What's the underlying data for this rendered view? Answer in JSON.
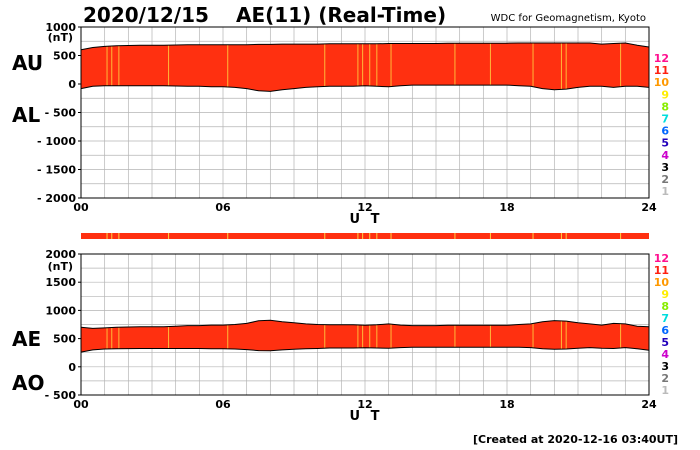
{
  "header": {
    "date": "2020/12/15",
    "title": "AE(11) (Real-Time)",
    "source": "WDC for Geomagnetism, Kyoto"
  },
  "footer": {
    "created": "[Created at 2020-12-16 03:40UT]"
  },
  "colors": {
    "fill": "#ff3010",
    "grid": "#b4b4b4",
    "flag_bar": "#ff3010",
    "outline": "#000000",
    "highlight_line": "#ffd040"
  },
  "chart_data": [
    {
      "type": "area",
      "panel": "AU/AL",
      "xlabel": "U T",
      "ylabel": "(nT)",
      "xlim": [
        0,
        24
      ],
      "ylim": [
        -2000,
        1000
      ],
      "x_ticks": [
        "00",
        "06",
        "12",
        "18",
        "24"
      ],
      "y_ticks": [
        "1000",
        "500",
        "0",
        "- 500",
        "- 1000",
        "- 1500",
        "- 2000"
      ],
      "side_labels": [
        "AU",
        "AL"
      ],
      "x": [
        0,
        0.5,
        1,
        1.5,
        2,
        2.5,
        3,
        3.5,
        4,
        4.5,
        5,
        5.5,
        6,
        6.5,
        7,
        7.5,
        8,
        8.5,
        9,
        9.5,
        10,
        10.5,
        11,
        11.5,
        12,
        12.5,
        13,
        13.5,
        14,
        14.5,
        15,
        15.5,
        16,
        16.5,
        17,
        17.5,
        18,
        18.5,
        19,
        19.5,
        20,
        20.5,
        21,
        21.5,
        22,
        22.5,
        23,
        23.5,
        24
      ],
      "series": [
        {
          "name": "AU",
          "values": [
            600,
            640,
            660,
            670,
            675,
            680,
            680,
            680,
            685,
            690,
            690,
            690,
            690,
            690,
            690,
            695,
            695,
            700,
            700,
            700,
            700,
            705,
            705,
            705,
            705,
            705,
            710,
            710,
            710,
            710,
            710,
            715,
            715,
            715,
            715,
            715,
            715,
            720,
            720,
            720,
            720,
            720,
            720,
            720,
            700,
            710,
            720,
            680,
            650
          ]
        },
        {
          "name": "AL",
          "values": [
            -80,
            -40,
            -30,
            -30,
            -30,
            -30,
            -30,
            -30,
            -35,
            -40,
            -40,
            -50,
            -50,
            -60,
            -80,
            -120,
            -130,
            -100,
            -80,
            -60,
            -50,
            -40,
            -40,
            -40,
            -30,
            -40,
            -50,
            -30,
            -20,
            -20,
            -20,
            -20,
            -20,
            -20,
            -20,
            -20,
            -20,
            -30,
            -40,
            -80,
            -100,
            -90,
            -60,
            -40,
            -40,
            -60,
            -40,
            -40,
            -60
          ]
        }
      ]
    },
    {
      "type": "area",
      "panel": "AE/AO",
      "xlabel": "U T",
      "ylabel": "(nT)",
      "xlim": [
        0,
        24
      ],
      "ylim": [
        -500,
        2000
      ],
      "x_ticks": [
        "00",
        "06",
        "12",
        "18",
        "24"
      ],
      "y_ticks": [
        "2000",
        "1500",
        "1000",
        "500",
        "0",
        "- 500"
      ],
      "side_labels": [
        "AE",
        "AO"
      ],
      "x": [
        0,
        0.5,
        1,
        1.5,
        2,
        2.5,
        3,
        3.5,
        4,
        4.5,
        5,
        5.5,
        6,
        6.5,
        7,
        7.5,
        8,
        8.5,
        9,
        9.5,
        10,
        10.5,
        11,
        11.5,
        12,
        12.5,
        13,
        13.5,
        14,
        14.5,
        15,
        15.5,
        16,
        16.5,
        17,
        17.5,
        18,
        18.5,
        19,
        19.5,
        20,
        20.5,
        21,
        21.5,
        22,
        22.5,
        23,
        23.5,
        24
      ],
      "series": [
        {
          "name": "AE",
          "values": [
            700,
            680,
            690,
            700,
            705,
            710,
            710,
            710,
            720,
            730,
            730,
            740,
            740,
            750,
            770,
            815,
            825,
            800,
            780,
            760,
            750,
            745,
            745,
            745,
            735,
            745,
            760,
            740,
            730,
            730,
            730,
            735,
            735,
            735,
            735,
            735,
            735,
            750,
            760,
            800,
            820,
            810,
            780,
            760,
            740,
            770,
            760,
            720,
            710
          ]
        },
        {
          "name": "AO",
          "values": [
            260,
            300,
            315,
            320,
            322,
            325,
            325,
            325,
            325,
            325,
            325,
            320,
            320,
            315,
            305,
            288,
            283,
            300,
            310,
            320,
            325,
            333,
            333,
            333,
            338,
            333,
            330,
            340,
            345,
            345,
            345,
            348,
            348,
            348,
            348,
            348,
            348,
            345,
            340,
            320,
            310,
            315,
            330,
            340,
            330,
            325,
            340,
            320,
            295
          ]
        }
      ]
    }
  ],
  "legend": {
    "levels": [
      {
        "label": "12",
        "color": "#ff1090"
      },
      {
        "label": "11",
        "color": "#ff2010"
      },
      {
        "label": "10",
        "color": "#ff9900"
      },
      {
        "label": "9",
        "color": "#ffee00"
      },
      {
        "label": "8",
        "color": "#88ee00"
      },
      {
        "label": "7",
        "color": "#00dddd"
      },
      {
        "label": "6",
        "color": "#0066ff"
      },
      {
        "label": "5",
        "color": "#2200bb"
      },
      {
        "label": "4",
        "color": "#cc00cc"
      },
      {
        "label": "3",
        "color": "#000000"
      },
      {
        "label": "2",
        "color": "#777777"
      },
      {
        "label": "1",
        "color": "#bbbbbb"
      }
    ]
  }
}
